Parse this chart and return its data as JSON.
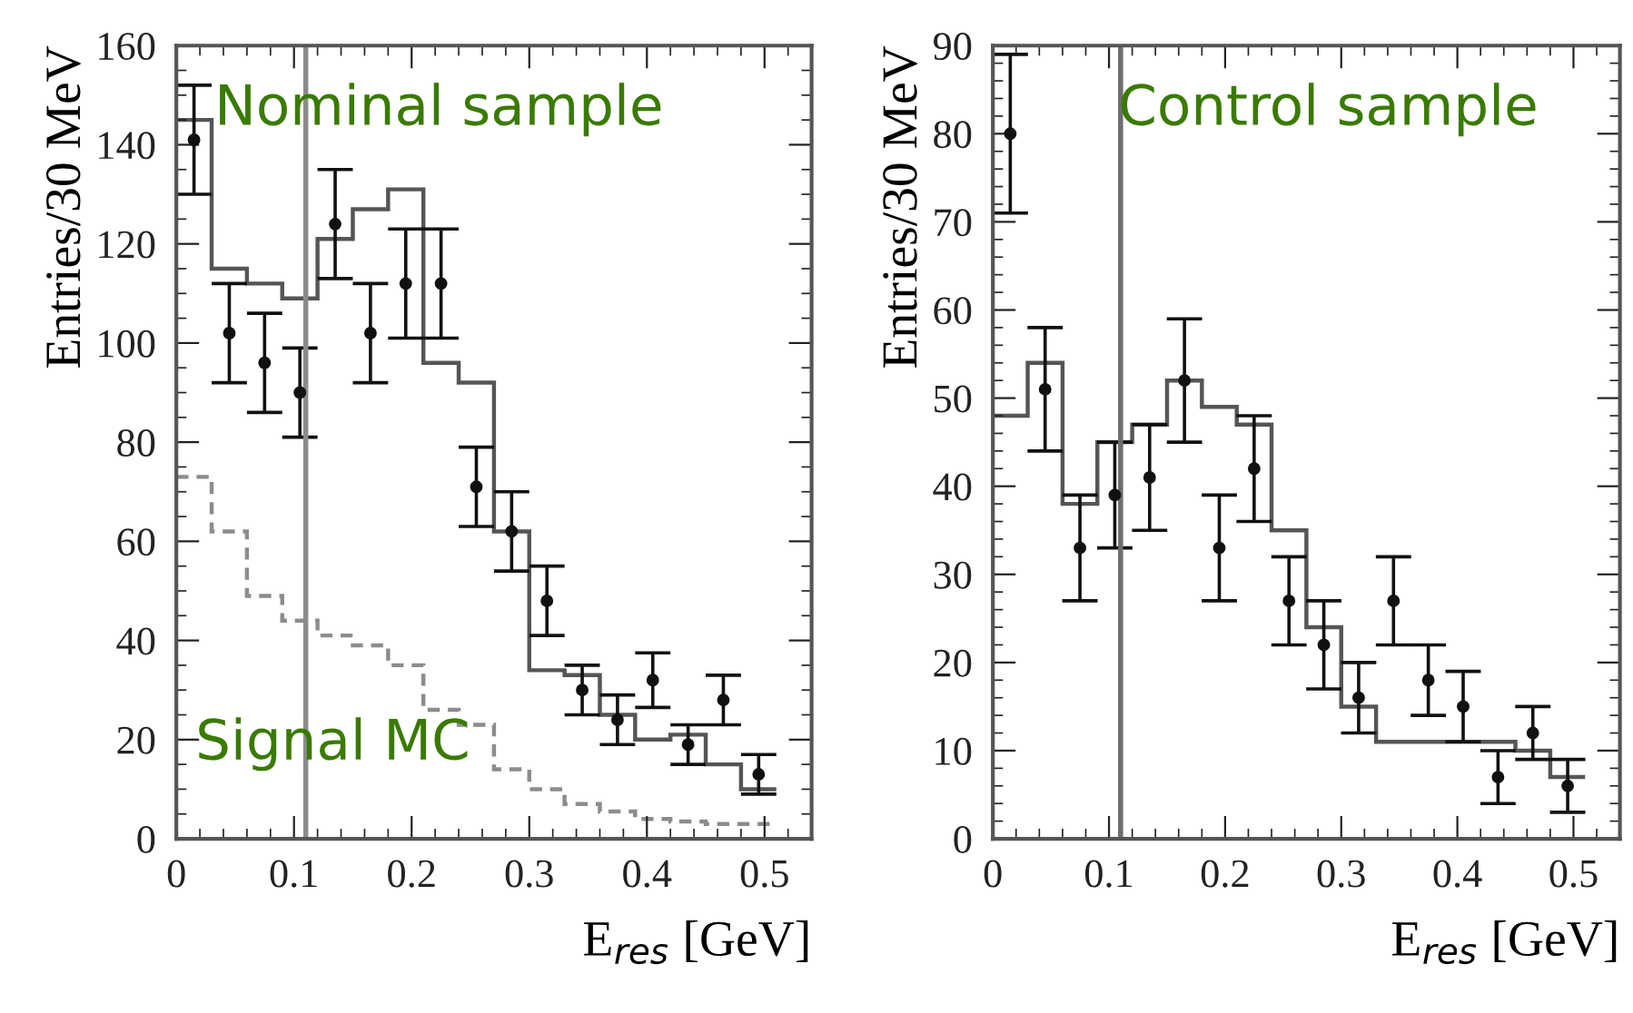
{
  "chart_data": [
    {
      "type": "histogram",
      "xlabel": "E$_{res}$ [GeV]",
      "ylabel": "Entries/30 MeV",
      "annotations": [
        "Nominal sample",
        "Signal MC"
      ],
      "bins": [
        0,
        0.03,
        0.06,
        0.09,
        0.12,
        0.15,
        0.18,
        0.21,
        0.24,
        0.27,
        0.3,
        0.33,
        0.36,
        0.39,
        0.42,
        0.45,
        0.48,
        0.51
      ],
      "xlim": [
        0,
        0.54
      ],
      "xticks": [
        0,
        0.1,
        0.2,
        0.3,
        0.4,
        0.5
      ],
      "ylim": [
        0,
        160
      ],
      "yticks": [
        0,
        20,
        40,
        60,
        80,
        100,
        120,
        140,
        160
      ],
      "grid": false,
      "ref_lines": [
        {
          "axis": "x",
          "value": 0.11,
          "color": "#8c8c8c"
        }
      ],
      "series": [
        {
          "color": "#555555",
          "line_style": "solid",
          "values": [
            145,
            115,
            112,
            109,
            121,
            127,
            131,
            96,
            92,
            62,
            34,
            33,
            25,
            20,
            21,
            15,
            10
          ]
        },
        {
          "color": "#8c8c8c",
          "line_style": "dashed",
          "values": [
            73,
            62,
            49,
            44,
            41,
            39,
            35,
            26,
            23,
            14,
            10,
            7,
            5.5,
            4,
            3.5,
            3,
            3
          ]
        },
        {
          "type": "scatter",
          "color": "#111111",
          "marker": "circle",
          "x": [
            0.015,
            0.045,
            0.075,
            0.105,
            0.135,
            0.165,
            0.195,
            0.225,
            0.255,
            0.285,
            0.315,
            0.345,
            0.375,
            0.405,
            0.435,
            0.465,
            0.495
          ],
          "values": [
            141,
            102,
            96,
            90,
            124,
            102,
            112,
            112,
            71,
            62,
            48,
            30,
            24,
            32,
            19,
            28,
            13
          ],
          "errors": [
            11,
            10,
            10,
            9,
            11,
            10,
            11,
            11,
            8,
            8,
            7,
            5,
            5,
            5.5,
            4,
            5,
            4
          ]
        }
      ]
    },
    {
      "type": "histogram",
      "xlabel": "E$_{res}$ [GeV]",
      "ylabel": "Entries/30 MeV",
      "annotations": [
        "Control sample"
      ],
      "bins": [
        0,
        0.03,
        0.06,
        0.09,
        0.12,
        0.15,
        0.18,
        0.21,
        0.24,
        0.27,
        0.3,
        0.33,
        0.36,
        0.39,
        0.42,
        0.45,
        0.48,
        0.51
      ],
      "xlim": [
        0,
        0.54
      ],
      "xticks": [
        0,
        0.1,
        0.2,
        0.3,
        0.4,
        0.5
      ],
      "ylim": [
        0,
        90
      ],
      "yticks": [
        0,
        10,
        20,
        30,
        40,
        50,
        60,
        70,
        80,
        90
      ],
      "grid": false,
      "ref_lines": [
        {
          "axis": "x",
          "value": 0.11,
          "color": "#6e6e6e"
        }
      ],
      "series": [
        {
          "color": "#555555",
          "line_style": "solid",
          "values": [
            48,
            54,
            38,
            45,
            47,
            52,
            49,
            47,
            35,
            24,
            15,
            11,
            11,
            11,
            11,
            10,
            7
          ]
        },
        {
          "type": "scatter",
          "color": "#111111",
          "marker": "circle",
          "x": [
            0.015,
            0.045,
            0.075,
            0.105,
            0.135,
            0.165,
            0.195,
            0.225,
            0.255,
            0.285,
            0.315,
            0.345,
            0.375,
            0.405,
            0.435,
            0.465,
            0.495
          ],
          "values": [
            80,
            51,
            33,
            39,
            41,
            52,
            33,
            42,
            27,
            22,
            16,
            27,
            18,
            15,
            7,
            12,
            6
          ],
          "errors": [
            9,
            7,
            6,
            6,
            6,
            7,
            6,
            6,
            5,
            5,
            4,
            5,
            4,
            4,
            3,
            3,
            3
          ]
        }
      ]
    }
  ]
}
